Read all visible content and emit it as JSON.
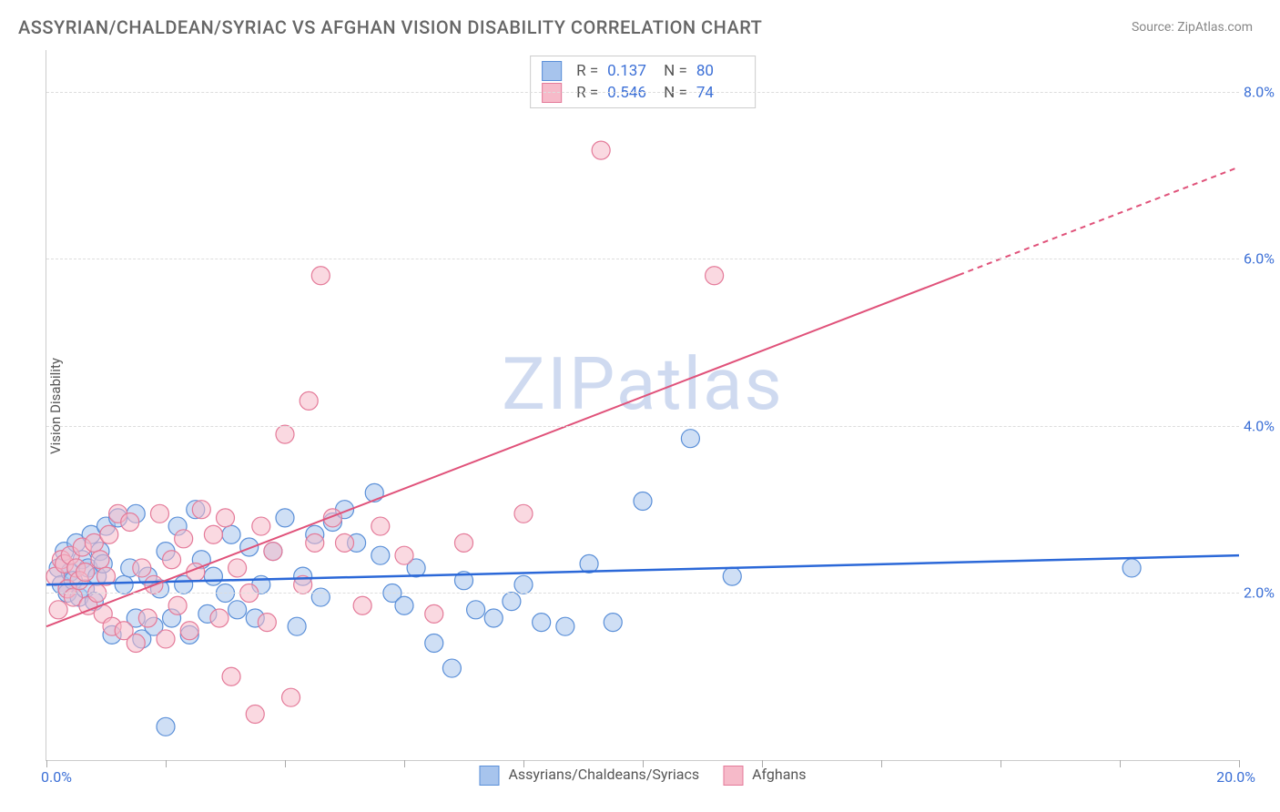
{
  "title": "ASSYRIAN/CHALDEAN/SYRIAC VS AFGHAN VISION DISABILITY CORRELATION CHART",
  "source": "Source: ZipAtlas.com",
  "ylabel": "Vision Disability",
  "watermark": "ZIPatlas",
  "chart": {
    "type": "scatter",
    "xlim": [
      0,
      20
    ],
    "ylim": [
      0,
      8.5
    ],
    "xtick_positions": [
      0,
      2,
      4,
      6,
      8,
      10,
      12,
      14,
      16,
      18,
      20
    ],
    "xtick_labels": {
      "left": "0.0%",
      "right": "20.0%"
    },
    "ytick_positions": [
      2,
      4,
      6,
      8
    ],
    "ytick_labels": [
      "2.0%",
      "4.0%",
      "6.0%",
      "8.0%"
    ],
    "grid_color": "#dddddd",
    "background_color": "#ffffff",
    "axis_color": "#cccccc",
    "label_color": "#3b6fd6",
    "point_radius": 10,
    "point_opacity": 0.55,
    "series": [
      {
        "name": "Assyrians/Chaldeans/Syriacs",
        "fill": "#a7c4ed",
        "stroke": "#5a8fd8",
        "R": "0.137",
        "N": "80",
        "trend": {
          "x1": 0,
          "y1": 2.1,
          "x2": 20,
          "y2": 2.45,
          "color": "#2b68d8",
          "width": 2.5,
          "dash_after_x": null
        },
        "points": [
          [
            0.2,
            2.3
          ],
          [
            0.25,
            2.1
          ],
          [
            0.3,
            2.5
          ],
          [
            0.35,
            2.0
          ],
          [
            0.4,
            2.25
          ],
          [
            0.45,
            2.15
          ],
          [
            0.5,
            2.6
          ],
          [
            0.55,
            1.95
          ],
          [
            0.6,
            2.4
          ],
          [
            0.65,
            2.05
          ],
          [
            0.7,
            2.3
          ],
          [
            0.75,
            2.7
          ],
          [
            0.8,
            1.9
          ],
          [
            0.85,
            2.2
          ],
          [
            0.9,
            2.5
          ],
          [
            0.95,
            2.35
          ],
          [
            1.0,
            2.8
          ],
          [
            1.1,
            1.5
          ],
          [
            1.2,
            2.9
          ],
          [
            1.3,
            2.1
          ],
          [
            1.4,
            2.3
          ],
          [
            1.5,
            1.7
          ],
          [
            1.5,
            2.95
          ],
          [
            1.6,
            1.45
          ],
          [
            1.7,
            2.2
          ],
          [
            1.8,
            1.6
          ],
          [
            1.9,
            2.05
          ],
          [
            2.0,
            0.4
          ],
          [
            2.0,
            2.5
          ],
          [
            2.1,
            1.7
          ],
          [
            2.2,
            2.8
          ],
          [
            2.3,
            2.1
          ],
          [
            2.4,
            1.5
          ],
          [
            2.5,
            3.0
          ],
          [
            2.6,
            2.4
          ],
          [
            2.7,
            1.75
          ],
          [
            2.8,
            2.2
          ],
          [
            3.0,
            2.0
          ],
          [
            3.1,
            2.7
          ],
          [
            3.2,
            1.8
          ],
          [
            3.4,
            2.55
          ],
          [
            3.5,
            1.7
          ],
          [
            3.6,
            2.1
          ],
          [
            3.8,
            2.5
          ],
          [
            4.0,
            2.9
          ],
          [
            4.2,
            1.6
          ],
          [
            4.3,
            2.2
          ],
          [
            4.5,
            2.7
          ],
          [
            4.6,
            1.95
          ],
          [
            4.8,
            2.85
          ],
          [
            5.0,
            3.0
          ],
          [
            5.2,
            2.6
          ],
          [
            5.5,
            3.2
          ],
          [
            5.6,
            2.45
          ],
          [
            5.8,
            2.0
          ],
          [
            6.0,
            1.85
          ],
          [
            6.2,
            2.3
          ],
          [
            6.5,
            1.4
          ],
          [
            6.8,
            1.1
          ],
          [
            7.0,
            2.15
          ],
          [
            7.2,
            1.8
          ],
          [
            7.5,
            1.7
          ],
          [
            7.8,
            1.9
          ],
          [
            8.0,
            2.1
          ],
          [
            8.3,
            1.65
          ],
          [
            8.7,
            1.6
          ],
          [
            9.1,
            2.35
          ],
          [
            9.5,
            1.65
          ],
          [
            10.0,
            3.1
          ],
          [
            10.8,
            3.85
          ],
          [
            11.5,
            2.2
          ],
          [
            18.2,
            2.3
          ]
        ]
      },
      {
        "name": "Afghans",
        "fill": "#f6bac9",
        "stroke": "#e47a99",
        "R": "0.546",
        "N": "74",
        "trend": {
          "x1": 0,
          "y1": 1.6,
          "x2": 20,
          "y2": 7.1,
          "color": "#e0527a",
          "width": 2,
          "dash_after_x": 15.3
        },
        "points": [
          [
            0.15,
            2.2
          ],
          [
            0.2,
            1.8
          ],
          [
            0.25,
            2.4
          ],
          [
            0.3,
            2.35
          ],
          [
            0.35,
            2.05
          ],
          [
            0.4,
            2.45
          ],
          [
            0.45,
            1.95
          ],
          [
            0.5,
            2.3
          ],
          [
            0.55,
            2.15
          ],
          [
            0.6,
            2.55
          ],
          [
            0.65,
            2.25
          ],
          [
            0.7,
            1.85
          ],
          [
            0.8,
            2.6
          ],
          [
            0.85,
            2.0
          ],
          [
            0.9,
            2.4
          ],
          [
            0.95,
            1.75
          ],
          [
            1.0,
            2.2
          ],
          [
            1.05,
            2.7
          ],
          [
            1.1,
            1.6
          ],
          [
            1.2,
            2.95
          ],
          [
            1.3,
            1.55
          ],
          [
            1.4,
            2.85
          ],
          [
            1.5,
            1.4
          ],
          [
            1.6,
            2.3
          ],
          [
            1.7,
            1.7
          ],
          [
            1.8,
            2.1
          ],
          [
            1.9,
            2.95
          ],
          [
            2.0,
            1.45
          ],
          [
            2.1,
            2.4
          ],
          [
            2.2,
            1.85
          ],
          [
            2.3,
            2.65
          ],
          [
            2.4,
            1.55
          ],
          [
            2.5,
            2.25
          ],
          [
            2.6,
            3.0
          ],
          [
            2.8,
            2.7
          ],
          [
            2.9,
            1.7
          ],
          [
            3.0,
            2.9
          ],
          [
            3.1,
            1.0
          ],
          [
            3.2,
            2.3
          ],
          [
            3.4,
            2.0
          ],
          [
            3.5,
            0.55
          ],
          [
            3.6,
            2.8
          ],
          [
            3.7,
            1.65
          ],
          [
            3.8,
            2.5
          ],
          [
            4.0,
            3.9
          ],
          [
            4.1,
            0.75
          ],
          [
            4.3,
            2.1
          ],
          [
            4.4,
            4.3
          ],
          [
            4.5,
            2.6
          ],
          [
            4.6,
            5.8
          ],
          [
            4.8,
            2.9
          ],
          [
            5.0,
            2.6
          ],
          [
            5.3,
            1.85
          ],
          [
            5.6,
            2.8
          ],
          [
            6.0,
            2.45
          ],
          [
            6.5,
            1.75
          ],
          [
            7.0,
            2.6
          ],
          [
            8.0,
            2.95
          ],
          [
            9.3,
            7.3
          ],
          [
            11.2,
            5.8
          ]
        ]
      }
    ]
  },
  "legend": {
    "series1_label": "Assyrians/Chaldeans/Syriacs",
    "series2_label": "Afghans"
  },
  "stats_box": {
    "R_label": "R  =",
    "N_label": "N  ="
  }
}
